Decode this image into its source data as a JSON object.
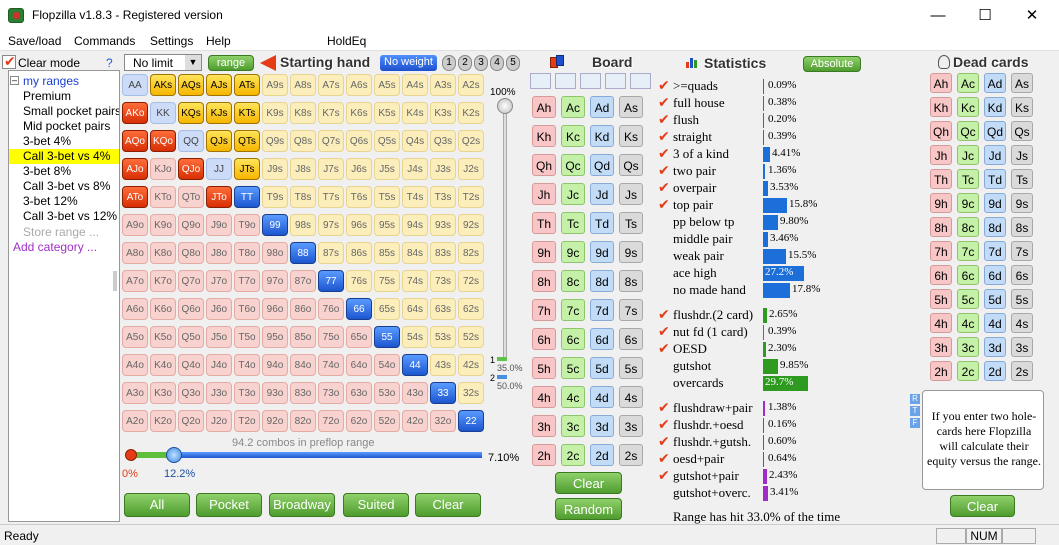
{
  "window": {
    "title": "Flopzilla v1.8.3 - Registered version",
    "minimize": "—",
    "maximize": "☐",
    "close": "✕"
  },
  "menu": [
    "Save/load",
    "Commands",
    "Settings",
    "Help",
    "HoldEq"
  ],
  "left": {
    "clear_mode": "Clear mode",
    "help": "?",
    "root": "my ranges",
    "items": [
      "Premium",
      "Small pocket pairs",
      "Mid pocket pairs",
      "3-bet 4%",
      "Call 3-bet vs 4%",
      "3-bet 8%",
      "Call 3-bet vs 8%",
      "3-bet 12%",
      "Call 3-bet vs 12%"
    ],
    "selected_index": 4,
    "store": "Store range ...",
    "add": "Add category ..."
  },
  "toolbar": {
    "limit": "No limit",
    "range": "range",
    "starting_hand": "Starting hand",
    "no_weight": "No weight",
    "weights": [
      "1",
      "2",
      "3",
      "4",
      "5"
    ]
  },
  "grid": {
    "rows": [
      [
        "AA",
        "AKs",
        "AQs",
        "AJs",
        "ATs",
        "A9s",
        "A8s",
        "A7s",
        "A6s",
        "A5s",
        "A4s",
        "A3s",
        "A2s"
      ],
      [
        "AKo",
        "KK",
        "KQs",
        "KJs",
        "KTs",
        "K9s",
        "K8s",
        "K7s",
        "K6s",
        "K5s",
        "K4s",
        "K3s",
        "K2s"
      ],
      [
        "AQo",
        "KQo",
        "QQ",
        "QJs",
        "QTs",
        "Q9s",
        "Q8s",
        "Q7s",
        "Q6s",
        "Q5s",
        "Q4s",
        "Q3s",
        "Q2s"
      ],
      [
        "AJo",
        "KJo",
        "QJo",
        "JJ",
        "JTs",
        "J9s",
        "J8s",
        "J7s",
        "J6s",
        "J5s",
        "J4s",
        "J3s",
        "J2s"
      ],
      [
        "ATo",
        "KTo",
        "QTo",
        "JTo",
        "TT",
        "T9s",
        "T8s",
        "T7s",
        "T6s",
        "T5s",
        "T4s",
        "T3s",
        "T2s"
      ],
      [
        "A9o",
        "K9o",
        "Q9o",
        "J9o",
        "T9o",
        "99",
        "98s",
        "97s",
        "96s",
        "95s",
        "94s",
        "93s",
        "92s"
      ],
      [
        "A8o",
        "K8o",
        "Q8o",
        "J8o",
        "T8o",
        "98o",
        "88",
        "87s",
        "86s",
        "85s",
        "84s",
        "83s",
        "82s"
      ],
      [
        "A7o",
        "K7o",
        "Q7o",
        "J7o",
        "T7o",
        "97o",
        "87o",
        "77",
        "76s",
        "75s",
        "74s",
        "73s",
        "72s"
      ],
      [
        "A6o",
        "K6o",
        "Q6o",
        "J6o",
        "T6o",
        "96o",
        "86o",
        "76o",
        "66",
        "65s",
        "64s",
        "63s",
        "62s"
      ],
      [
        "A5o",
        "K5o",
        "Q5o",
        "J5o",
        "T5o",
        "95o",
        "85o",
        "75o",
        "65o",
        "55",
        "54s",
        "53s",
        "52s"
      ],
      [
        "A4o",
        "K4o",
        "Q4o",
        "J4o",
        "T4o",
        "94o",
        "84o",
        "74o",
        "64o",
        "54o",
        "44",
        "43s",
        "42s"
      ],
      [
        "A3o",
        "K3o",
        "Q3o",
        "J3o",
        "T3o",
        "93o",
        "83o",
        "73o",
        "63o",
        "53o",
        "43o",
        "33",
        "32s"
      ],
      [
        "A2o",
        "K2o",
        "Q2o",
        "J2o",
        "T2o",
        "92o",
        "82o",
        "72o",
        "62o",
        "52o",
        "42o",
        "32o",
        "22"
      ]
    ],
    "selected": [
      "AKs",
      "AQs",
      "AJs",
      "ATs",
      "KQs",
      "KJs",
      "KTs",
      "QJs",
      "QTs",
      "JTs",
      "AKo",
      "AQo",
      "KQo",
      "AJo",
      "QJo",
      "ATo",
      "JTo",
      "TT",
      "99",
      "88",
      "77",
      "66",
      "55",
      "44",
      "33",
      "22"
    ],
    "marked": [
      "AKs",
      "AQs",
      "AJs",
      "ATs",
      "KQs",
      "KJs",
      "KTs",
      "QJs",
      "QTs",
      "AKo",
      "AQo",
      "KQo",
      "AJo",
      "QJo",
      "ATo"
    ],
    "combos": "94.2 combos in preflop range",
    "slider_min": "0%",
    "slider_pos": "12.2%",
    "slider_max": "7.10%",
    "vslider_top": "100%",
    "vslider_mark1": "1",
    "vslider_val1": "35.0%",
    "vslider_mark2": "2",
    "vslider_val2": "50.0%"
  },
  "buttons": [
    "All",
    "Pocket",
    "Broadway",
    "Suited",
    "Clear"
  ],
  "board": {
    "title": "Board",
    "ranks": [
      "A",
      "K",
      "Q",
      "J",
      "T",
      "9",
      "8",
      "7",
      "6",
      "5",
      "4",
      "3",
      "2"
    ],
    "suits": [
      "h",
      "c",
      "d",
      "s"
    ],
    "clear": "Clear",
    "random": "Random"
  },
  "stats": {
    "title": "Statistics",
    "absolute": "Absolute",
    "group1": [
      {
        "label": ">=quads",
        "val": "0.09%",
        "pct": 0.09,
        "check": true
      },
      {
        "label": "full house",
        "val": "0.38%",
        "pct": 0.38,
        "check": true
      },
      {
        "label": "flush",
        "val": "0.20%",
        "pct": 0.2,
        "check": true
      },
      {
        "label": "straight",
        "val": "0.39%",
        "pct": 0.39,
        "check": true
      },
      {
        "label": "3 of a kind",
        "val": "4.41%",
        "pct": 4.41,
        "check": true
      },
      {
        "label": "two pair",
        "val": "1.36%",
        "pct": 1.36,
        "check": true
      },
      {
        "label": "overpair",
        "val": "3.53%",
        "pct": 3.53,
        "check": true
      },
      {
        "label": "top pair",
        "val": "15.8%",
        "pct": 15.8,
        "check": true
      },
      {
        "label": "pp below tp",
        "val": "9.80%",
        "pct": 9.8,
        "check": false
      },
      {
        "label": "middle pair",
        "val": "3.46%",
        "pct": 3.46,
        "check": false
      },
      {
        "label": "weak pair",
        "val": "15.5%",
        "pct": 15.5,
        "check": false
      },
      {
        "label": "ace high",
        "val": "27.2%",
        "pct": 27.2,
        "check": false
      },
      {
        "label": "no made hand",
        "val": "17.8%",
        "pct": 17.8,
        "check": false
      }
    ],
    "group2": [
      {
        "label": "flushdr.(2 card)",
        "val": "2.65%",
        "pct": 2.65,
        "check": true
      },
      {
        "label": "nut fd (1 card)",
        "val": "0.39%",
        "pct": 0.39,
        "check": true
      },
      {
        "label": "OESD",
        "val": "2.30%",
        "pct": 2.3,
        "check": true
      },
      {
        "label": "gutshot",
        "val": "9.85%",
        "pct": 9.85,
        "check": false
      },
      {
        "label": "overcards",
        "val": "29.7%",
        "pct": 29.7,
        "check": false
      }
    ],
    "group3": [
      {
        "label": "flushdraw+pair",
        "val": "1.38%",
        "pct": 1.38,
        "check": true
      },
      {
        "label": "flushdr.+oesd",
        "val": "0.16%",
        "pct": 0.16,
        "check": true
      },
      {
        "label": "flushdr.+gutsh.",
        "val": "0.60%",
        "pct": 0.6,
        "check": true
      },
      {
        "label": "oesd+pair",
        "val": "0.64%",
        "pct": 0.64,
        "check": true
      },
      {
        "label": "gutshot+pair",
        "val": "2.43%",
        "pct": 2.43,
        "check": true
      },
      {
        "label": "gutshot+overc.",
        "val": "3.41%",
        "pct": 3.41,
        "check": false
      }
    ],
    "footer": "Range has hit 33.0% of the time",
    "colors": {
      "blue": "#1c6fd8",
      "green": "#2e9a1f",
      "purple": "#a02cc8"
    }
  },
  "dead": {
    "title": "Dead cards",
    "info": "If you enter two hole-cards here Flopzilla will calculate their equity versus the range.",
    "clear": "Clear",
    "tags": [
      "R",
      "T",
      "F"
    ]
  },
  "status": {
    "ready": "Ready",
    "num": "NUM"
  }
}
